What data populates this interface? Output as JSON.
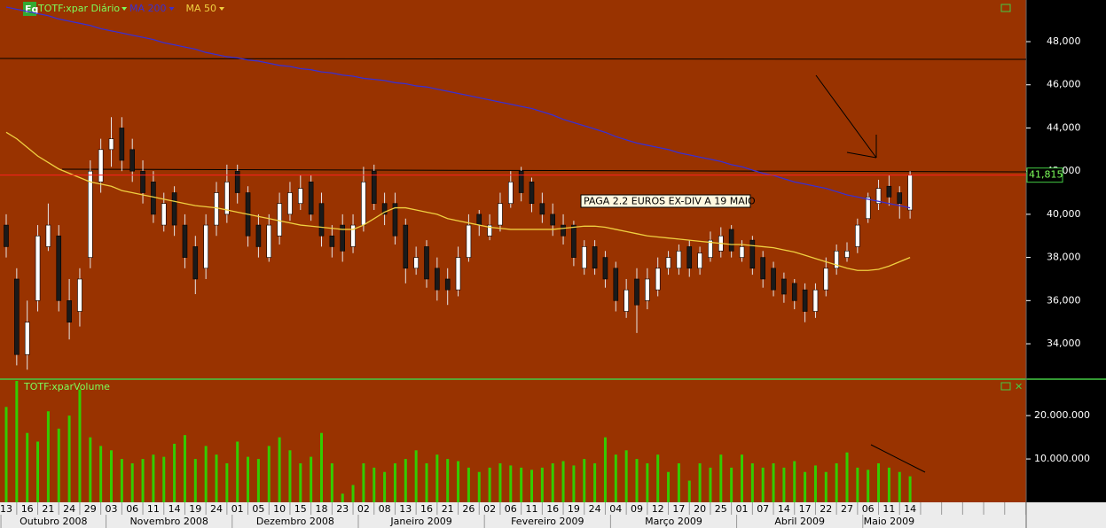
{
  "chart_data": [
    {
      "type": "candlestick",
      "badge": "Eq",
      "title": "TOTF:xpar Diário",
      "categories": [
        "13",
        null,
        "16",
        null,
        "21",
        null,
        "24",
        null,
        "29",
        null,
        "03",
        null,
        "06",
        null,
        "11",
        null,
        "14",
        null,
        "19",
        null,
        "24",
        null,
        "01",
        null,
        "05",
        null,
        "10",
        null,
        "15",
        null,
        "18",
        null,
        "23",
        null,
        "02",
        null,
        "08",
        null,
        "13",
        null,
        "16",
        null,
        "21",
        null,
        "26",
        null,
        "02",
        null,
        "06",
        null,
        "11",
        null,
        "16",
        null,
        "19",
        null,
        "24",
        null,
        "04",
        null,
        "09",
        null,
        "12",
        null,
        "17",
        null,
        "20",
        null,
        "25",
        null,
        "01",
        null,
        "07",
        null,
        "14",
        null,
        "17",
        null,
        "22",
        null,
        "27",
        null,
        "06",
        null,
        "11",
        null,
        "14"
      ],
      "months": [
        "Outubro 2008",
        null,
        null,
        null,
        null,
        null,
        null,
        null,
        null,
        null,
        "Novembro 2008",
        null,
        null,
        null,
        null,
        null,
        null,
        null,
        null,
        null,
        null,
        null,
        "Dezembro 2008",
        null,
        null,
        null,
        null,
        null,
        null,
        null,
        null,
        null,
        null,
        null,
        "Janeiro 2009",
        null,
        null,
        null,
        null,
        null,
        null,
        null,
        null,
        null,
        null,
        null,
        "Fevereiro 2009",
        null,
        null,
        null,
        null,
        null,
        null,
        null,
        null,
        null,
        null,
        null,
        "Março 2009",
        null,
        null,
        null,
        null,
        null,
        null,
        null,
        null,
        null,
        null,
        null,
        "Abril 2009",
        null,
        null,
        null,
        null,
        null,
        null,
        null,
        null,
        null,
        null,
        null,
        "Maio 2009",
        null,
        null,
        null,
        null
      ],
      "open": [
        39.5,
        37,
        33.5,
        36,
        38.5,
        39,
        36,
        35.5,
        38,
        41.5,
        43,
        44,
        43,
        42,
        41.5,
        39.5,
        41,
        39.5,
        38.5,
        37.5,
        39.5,
        40,
        42,
        41,
        39.5,
        38,
        39,
        40,
        40.5,
        41.5,
        40.5,
        39,
        39.5,
        38.5,
        39.5,
        42,
        40.5,
        40.5,
        39.5,
        37.5,
        38.5,
        37.5,
        37,
        36.5,
        38,
        40,
        39,
        39.5,
        40.5,
        42,
        41.5,
        40.5,
        40,
        39.5,
        39.5,
        37.5,
        38.5,
        38,
        37.5,
        35.5,
        37,
        36,
        36.5,
        37.5,
        37.5,
        38.5,
        37.5,
        38,
        38.3,
        39.3,
        38,
        38.8,
        38,
        37.5,
        37,
        36.8,
        36.5,
        35.5,
        36.5,
        37.5,
        38,
        38.5,
        39.8,
        40.5,
        41.3,
        41,
        40.2
      ],
      "high": [
        40,
        37.5,
        36,
        39.5,
        40.5,
        39.5,
        37,
        37.5,
        42.5,
        43.5,
        44.5,
        44.5,
        43.5,
        42.5,
        42,
        41,
        41.3,
        40,
        39,
        40,
        41.5,
        42.3,
        42.3,
        41.3,
        40,
        40,
        41,
        41.5,
        41.8,
        41.8,
        41,
        39.5,
        40,
        40,
        42.2,
        42.3,
        41,
        41,
        39.8,
        38.5,
        38.8,
        38,
        37.5,
        38.5,
        40,
        40.2,
        40,
        41,
        42,
        42.2,
        41.7,
        41,
        40.5,
        40,
        39.7,
        38.8,
        38.8,
        38.3,
        37.8,
        37,
        37.5,
        37.5,
        38,
        38.3,
        38.6,
        38.8,
        38.5,
        39.2,
        39.4,
        39.5,
        38.8,
        39,
        38.3,
        37.8,
        37.3,
        37,
        36.8,
        36.8,
        38,
        38.6,
        38.7,
        39.8,
        41,
        41.6,
        41.8,
        41.3,
        42
      ],
      "low": [
        38,
        33,
        32.8,
        35.5,
        38.3,
        35.5,
        34.2,
        34.8,
        37.5,
        41,
        42.2,
        42,
        41.5,
        40.5,
        39.6,
        39.2,
        39,
        37.5,
        36.3,
        37,
        39,
        39.6,
        40.5,
        38.5,
        38,
        37.8,
        38.6,
        39.7,
        40.2,
        39.7,
        38.5,
        38,
        37.8,
        38.2,
        39.2,
        40.2,
        39.5,
        38.6,
        36.8,
        37.2,
        36.6,
        36,
        35.8,
        36.2,
        37.8,
        39,
        38.8,
        39.2,
        40.3,
        40.6,
        40.1,
        39.6,
        39,
        38.6,
        37.6,
        37.2,
        37.2,
        36.6,
        35.5,
        35.2,
        34.5,
        35.6,
        36.2,
        37.2,
        37.2,
        37.1,
        37.2,
        37.8,
        38,
        38,
        37.8,
        37.2,
        36.6,
        36.2,
        35.9,
        35.6,
        35,
        35.2,
        36.2,
        37.2,
        37.8,
        38.2,
        39.6,
        40.2,
        40.4,
        39.8,
        39.8
      ],
      "close": [
        38.5,
        33.5,
        35,
        39,
        39.5,
        36,
        35,
        37,
        42,
        43,
        43.5,
        42.5,
        42,
        41,
        40,
        40.5,
        39.5,
        38,
        37,
        39.5,
        41,
        41.5,
        41,
        39,
        38.5,
        39.5,
        40.5,
        41,
        41.2,
        40,
        39,
        38.5,
        38.3,
        39.5,
        41.5,
        40.5,
        40,
        39,
        37.5,
        38,
        37,
        36.5,
        36.5,
        38,
        39.5,
        39.5,
        39.5,
        40.5,
        41.5,
        41,
        40.5,
        40,
        39.5,
        39,
        38,
        38.5,
        37.5,
        37,
        36,
        36.5,
        35.8,
        37,
        37.5,
        38,
        38.3,
        37.5,
        38.2,
        38.8,
        39,
        38.3,
        38.5,
        37.5,
        37,
        36.5,
        36.3,
        36,
        35.5,
        36.5,
        37.5,
        38.3,
        38.3,
        39.5,
        40.8,
        41.2,
        40.8,
        40.5,
        41.815
      ],
      "up_color": "#ffffff",
      "down_color": "#1a1a1a",
      "last_label": "41,815",
      "series": [
        {
          "name": "MA 200",
          "color": "#3a2fd0",
          "values": [
            49.6,
            49.5,
            49.4,
            49.3,
            49.2,
            49.05,
            48.95,
            48.85,
            48.75,
            48.6,
            48.5,
            48.4,
            48.3,
            48.2,
            48.1,
            47.95,
            47.85,
            47.75,
            47.65,
            47.5,
            47.4,
            47.3,
            47.25,
            47.15,
            47.1,
            47.0,
            46.9,
            46.85,
            46.75,
            46.7,
            46.6,
            46.55,
            46.45,
            46.4,
            46.3,
            46.25,
            46.2,
            46.1,
            46.05,
            45.95,
            45.9,
            45.8,
            45.7,
            45.6,
            45.5,
            45.4,
            45.3,
            45.2,
            45.1,
            45.0,
            44.9,
            44.75,
            44.6,
            44.4,
            44.25,
            44.1,
            43.95,
            43.8,
            43.6,
            43.45,
            43.3,
            43.2,
            43.1,
            43.0,
            42.85,
            42.75,
            42.65,
            42.55,
            42.45,
            42.3,
            42.2,
            42.05,
            41.9,
            41.8,
            41.65,
            41.5,
            41.4,
            41.3,
            41.2,
            41.05,
            40.9,
            40.8,
            40.7,
            40.6,
            40.5,
            40.4,
            40.3
          ]
        },
        {
          "name": "MA 50",
          "color": "#f0d040",
          "values": [
            43.8,
            43.5,
            43.1,
            42.7,
            42.4,
            42.1,
            41.9,
            41.7,
            41.5,
            41.4,
            41.3,
            41.1,
            41.0,
            40.9,
            40.8,
            40.7,
            40.6,
            40.5,
            40.4,
            40.35,
            40.3,
            40.2,
            40.1,
            40.0,
            39.9,
            39.8,
            39.7,
            39.6,
            39.5,
            39.45,
            39.4,
            39.35,
            39.3,
            39.3,
            39.5,
            39.8,
            40.1,
            40.3,
            40.3,
            40.2,
            40.1,
            40.0,
            39.8,
            39.7,
            39.6,
            39.5,
            39.4,
            39.35,
            39.3,
            39.3,
            39.3,
            39.3,
            39.3,
            39.35,
            39.4,
            39.45,
            39.45,
            39.4,
            39.3,
            39.2,
            39.1,
            39.0,
            38.95,
            38.9,
            38.85,
            38.8,
            38.75,
            38.7,
            38.65,
            38.6,
            38.6,
            38.55,
            38.5,
            38.45,
            38.35,
            38.25,
            38.1,
            37.95,
            37.8,
            37.65,
            37.5,
            37.4,
            37.4,
            37.45,
            37.6,
            37.8,
            38.0
          ]
        }
      ],
      "ylim": [
        32.36,
        49.93
      ],
      "yticks": [
        {
          "value": 34,
          "label": "34,000"
        },
        {
          "value": 36,
          "label": "36,000"
        },
        {
          "value": 38,
          "label": "38,000"
        },
        {
          "value": 40,
          "label": "40,000"
        },
        {
          "value": 42,
          "label": "42,000"
        },
        {
          "value": 44,
          "label": "44,000"
        },
        {
          "value": 46,
          "label": "46,000"
        },
        {
          "value": 48,
          "label": "48,000"
        }
      ],
      "annotation": "PAGA 2.2 EUROS EX-DIV A 19 MAIO"
    },
    {
      "type": "bar",
      "title": "TOTF:xparVolume",
      "color": "#33cc00",
      "values": [
        22000000.0,
        28000000.0,
        16000000.0,
        14000000.0,
        21000000.0,
        17000000.0,
        20000000.0,
        26000000.0,
        15000000.0,
        13000000.0,
        12000000.0,
        10000000.0,
        9000000.0,
        10000000.0,
        11000000.0,
        10500000.0,
        13500000.0,
        15500000.0,
        10000000.0,
        13000000.0,
        11000000.0,
        9000000.0,
        14000000.0,
        10500000.0,
        10000000.0,
        13000000.0,
        15000000.0,
        12000000.0,
        9000000.0,
        10500000.0,
        16000000.0,
        9000000.0,
        2000000.0,
        4000000.0,
        9000000.0,
        8000000.0,
        7000000.0,
        9000000.0,
        10000000.0,
        12000000.0,
        9000000.0,
        11000000.0,
        10000000.0,
        9500000.0,
        8000000.0,
        7000000.0,
        8000000.0,
        9000000.0,
        8500000.0,
        8000000.0,
        7500000.0,
        8000000.0,
        9000000.0,
        9500000.0,
        8500000.0,
        10000000.0,
        9000000.0,
        15000000.0,
        11000000.0,
        12000000.0,
        10000000.0,
        9000000.0,
        11000000.0,
        7000000.0,
        9000000.0,
        5000000.0,
        9000000.0,
        8000000.0,
        11000000.0,
        8000000.0,
        11000000.0,
        9000000.0,
        8000000.0,
        9000000.0,
        8000000.0,
        9500000.0,
        7000000.0,
        8500000.0,
        7000000.0,
        9000000.0,
        11500000.0,
        8000000.0,
        7500000.0,
        9000000.0,
        8000000.0,
        7000000.0,
        6000000.0
      ],
      "ylim": [
        0,
        28000000
      ],
      "yticks": [
        {
          "value": 10000000,
          "label": "10.000.000"
        },
        {
          "value": 20000000,
          "label": "20.000.000"
        }
      ]
    }
  ]
}
